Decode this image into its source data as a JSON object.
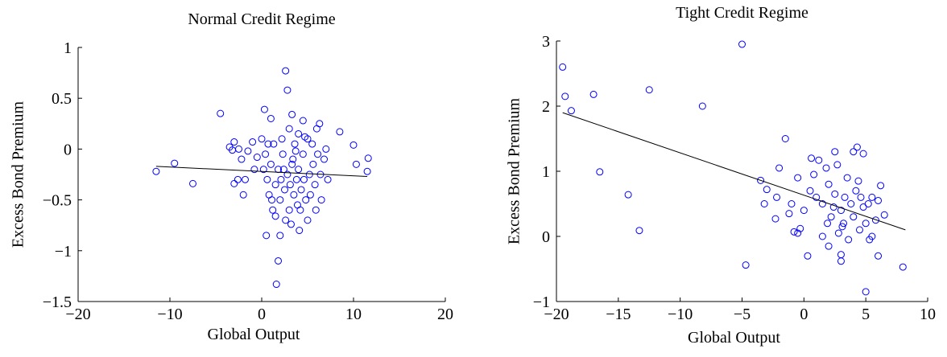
{
  "chart_data": [
    {
      "type": "scatter",
      "title": "Normal Credit Regime",
      "x_label": "Global Output",
      "y_label": "Excess Bond Premium",
      "xlim": [
        -20,
        20
      ],
      "ylim": [
        -1.5,
        1
      ],
      "xticks": [
        {
          "value": -20,
          "label": "−20"
        },
        {
          "value": -10,
          "label": "−10"
        },
        0,
        10,
        20
      ],
      "yticks": [
        {
          "value": -1.5,
          "label": "−1.5"
        },
        {
          "value": -1,
          "label": "−1"
        },
        {
          "value": -0.5,
          "label": "−0.5"
        },
        0,
        0.5,
        1
      ],
      "series": [
        {
          "color": "#0000ff",
          "x": [
            -11.5,
            -9.5,
            -7.5,
            -4.5,
            -3.5,
            -3.2,
            -3,
            -2.5,
            -3,
            -2.6,
            -2,
            -2.2,
            -1.5,
            -1,
            -0.8,
            -0.5,
            0,
            0.3,
            0.4,
            0.5,
            0.6,
            0.8,
            1,
            1,
            1.2,
            1.3,
            1.5,
            1.5,
            1.6,
            1.8,
            1.8,
            2,
            2,
            2.2,
            2.3,
            2.5,
            2.6,
            2.6,
            2.8,
            2.8,
            3,
            3,
            3.1,
            3.2,
            3.3,
            3.4,
            3.5,
            3.6,
            3.8,
            3.9,
            4,
            4,
            4.2,
            4.3,
            4.5,
            4.5,
            4.6,
            4.8,
            5,
            5,
            5.2,
            5.3,
            5.5,
            5.6,
            5.8,
            6,
            6.1,
            6.3,
            6.4,
            6.5,
            6.8,
            7,
            7.2,
            8.5,
            10,
            10.3,
            11.5,
            11.6,
            -1.8,
            0.2,
            1.1,
            2.4,
            3.7,
            4.7,
            5.9,
            2.1,
            3.3,
            4.1,
            0.7
          ],
          "values": [
            -0.22,
            -0.14,
            -0.34,
            0.35,
            0.02,
            -0.01,
            0.07,
            0,
            -0.34,
            -0.3,
            -0.45,
            -0.1,
            -0.02,
            0.07,
            -0.2,
            -0.08,
            0.1,
            0.39,
            -0.05,
            -0.85,
            -0.3,
            -0.45,
            0.3,
            -0.15,
            -0.6,
            0.05,
            -0.66,
            -0.35,
            -1.33,
            -1.1,
            -0.2,
            -0.85,
            -0.5,
            0.1,
            -0.05,
            -0.4,
            0.77,
            -0.7,
            0.58,
            -0.25,
            -0.6,
            0.2,
            -0.35,
            -0.74,
            0.34,
            -0.1,
            -0.45,
            0.05,
            -0.3,
            -0.55,
            0.15,
            -0.2,
            -0.6,
            -0.4,
            0.28,
            -0.05,
            -0.3,
            -0.5,
            -0.7,
            0.1,
            -0.25,
            -0.45,
            0.05,
            -0.15,
            -0.35,
            0.2,
            -0.05,
            0.25,
            -0.25,
            -0.5,
            -0.1,
            0,
            -0.3,
            0.17,
            0.04,
            -0.15,
            -0.22,
            -0.09,
            -0.3,
            -0.2,
            -0.5,
            -0.2,
            -0.02,
            0.12,
            -0.6,
            -0.3,
            -0.15,
            -0.8,
            0.05
          ]
        }
      ],
      "line": {
        "color": "#000000",
        "x": [
          -11.5,
          11.5
        ],
        "values": [
          -0.17,
          -0.27
        ]
      }
    },
    {
      "type": "scatter",
      "title": "Tight Credit Regime",
      "x_label": "Global Output",
      "y_label": "Excess Bond Premium",
      "xlim": [
        -20,
        10
      ],
      "ylim": [
        -1,
        3
      ],
      "xticks": [
        {
          "value": -20,
          "label": "−20"
        },
        {
          "value": -15,
          "label": "−15"
        },
        {
          "value": -10,
          "label": "−10"
        },
        {
          "value": -5,
          "label": "−5"
        },
        0,
        5,
        10
      ],
      "yticks": [
        {
          "value": -1,
          "label": "−1"
        },
        0,
        1,
        2,
        3
      ],
      "series": [
        {
          "color": "#0000ff",
          "x": [
            -19.5,
            -19.3,
            -18.8,
            -17,
            -12.5,
            -8.2,
            -5,
            -16.5,
            -14.2,
            -13.3,
            -4.7,
            -1.5,
            -2,
            -3.5,
            -3,
            -3.2,
            -2.2,
            -2.3,
            -1,
            -0.8,
            -0.5,
            -0.3,
            0.3,
            8,
            5,
            6,
            3,
            3,
            2,
            0.6,
            1.2,
            1.8,
            2.5,
            4,
            4.3,
            4.8,
            6.2,
            5.5,
            6.5,
            0.5,
            1,
            1.5,
            2,
            2.5,
            3,
            3.2,
            3.5,
            3.8,
            4,
            4.2,
            4.5,
            4.8,
            5,
            5.2,
            5.5,
            5.8,
            6,
            0,
            -0.5,
            1.5,
            2.2,
            2.8,
            3.3,
            3.6,
            4.4,
            5.3,
            2.7,
            1.9,
            0.8,
            3.1,
            4.6,
            2.4,
            -1.2
          ],
          "values": [
            2.6,
            2.15,
            1.93,
            2.18,
            2.25,
            2,
            2.95,
            0.99,
            0.64,
            0.09,
            -0.44,
            1.5,
            1.05,
            0.86,
            0.72,
            0.5,
            0.6,
            0.27,
            0.5,
            0.07,
            0.05,
            0.12,
            -0.3,
            -0.47,
            -0.85,
            -0.3,
            -0.38,
            -0.28,
            -0.15,
            1.2,
            1.17,
            1.05,
            1.3,
            1.3,
            1.37,
            1.27,
            0.78,
            0.6,
            0.33,
            0.7,
            0.6,
            0.5,
            0.8,
            0.65,
            0.4,
            0.2,
            0.9,
            0.5,
            0.3,
            0.7,
            0.1,
            0.45,
            0.2,
            0.5,
            0,
            0.25,
            0.55,
            0.4,
            0.9,
            0,
            0.3,
            0.05,
            0.6,
            -0.05,
            0.85,
            -0.05,
            1.1,
            0.2,
            0.95,
            0.15,
            0.6,
            0.45,
            0.35
          ]
        }
      ],
      "line": {
        "color": "#000000",
        "x": [
          -19.5,
          8.2
        ],
        "values": [
          1.9,
          0.1
        ]
      }
    }
  ]
}
